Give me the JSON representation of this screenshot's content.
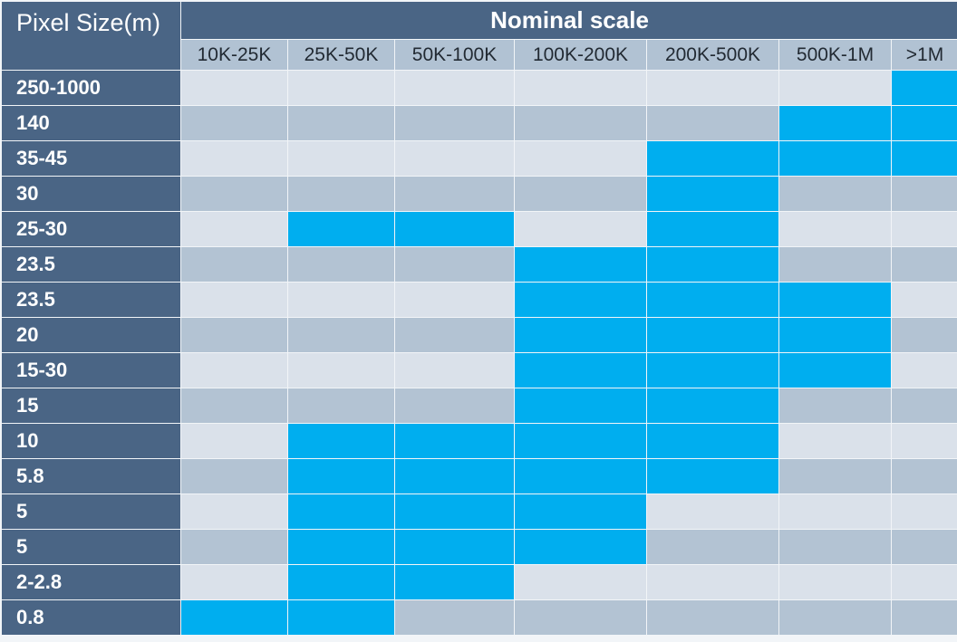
{
  "chart_data": {
    "type": "table",
    "row_header_title": "Pixel Size(m)",
    "column_group_title": "Nominal scale",
    "columns": [
      "10K-25K",
      "25K-50K",
      "50K-100K",
      "100K-200K",
      "200K-500K",
      "500K-1M",
      ">1M"
    ],
    "rows": [
      {
        "label": "250-1000",
        "values": [
          0,
          0,
          0,
          0,
          0,
          0,
          1
        ]
      },
      {
        "label": "140",
        "values": [
          0,
          0,
          0,
          0,
          0,
          1,
          1
        ]
      },
      {
        "label": "35-45",
        "values": [
          0,
          0,
          0,
          0,
          1,
          1,
          1
        ]
      },
      {
        "label": "30",
        "values": [
          0,
          0,
          0,
          0,
          1,
          0,
          0
        ]
      },
      {
        "label": "25-30",
        "values": [
          0,
          1,
          1,
          0,
          1,
          0,
          0
        ]
      },
      {
        "label": "23.5",
        "values": [
          0,
          0,
          0,
          1,
          1,
          0,
          0
        ]
      },
      {
        "label": "23.5",
        "values": [
          0,
          0,
          0,
          1,
          1,
          1,
          0
        ]
      },
      {
        "label": "20",
        "values": [
          0,
          0,
          0,
          1,
          1,
          1,
          0
        ]
      },
      {
        "label": "15-30",
        "values": [
          0,
          0,
          0,
          1,
          1,
          1,
          0
        ]
      },
      {
        "label": "15",
        "values": [
          0,
          0,
          0,
          1,
          1,
          0,
          0
        ]
      },
      {
        "label": "10",
        "values": [
          0,
          1,
          1,
          1,
          1,
          0,
          0
        ]
      },
      {
        "label": "5.8",
        "values": [
          0,
          1,
          1,
          1,
          1,
          0,
          0
        ]
      },
      {
        "label": "5",
        "values": [
          0,
          1,
          1,
          1,
          0,
          0,
          0
        ]
      },
      {
        "label": "5",
        "values": [
          0,
          1,
          1,
          1,
          0,
          0,
          0
        ]
      },
      {
        "label": "2-2.8",
        "values": [
          0,
          1,
          1,
          0,
          0,
          0,
          0
        ]
      },
      {
        "label": "0.8",
        "values": [
          1,
          1,
          0,
          0,
          0,
          0,
          0
        ]
      }
    ],
    "colors": {
      "header_bg": "#4a6585",
      "column_header_bg": "#b1c2d3",
      "highlight": "#00aeef",
      "stripe_light": "#dae1ea",
      "stripe_dark": "#b3c3d3"
    }
  }
}
